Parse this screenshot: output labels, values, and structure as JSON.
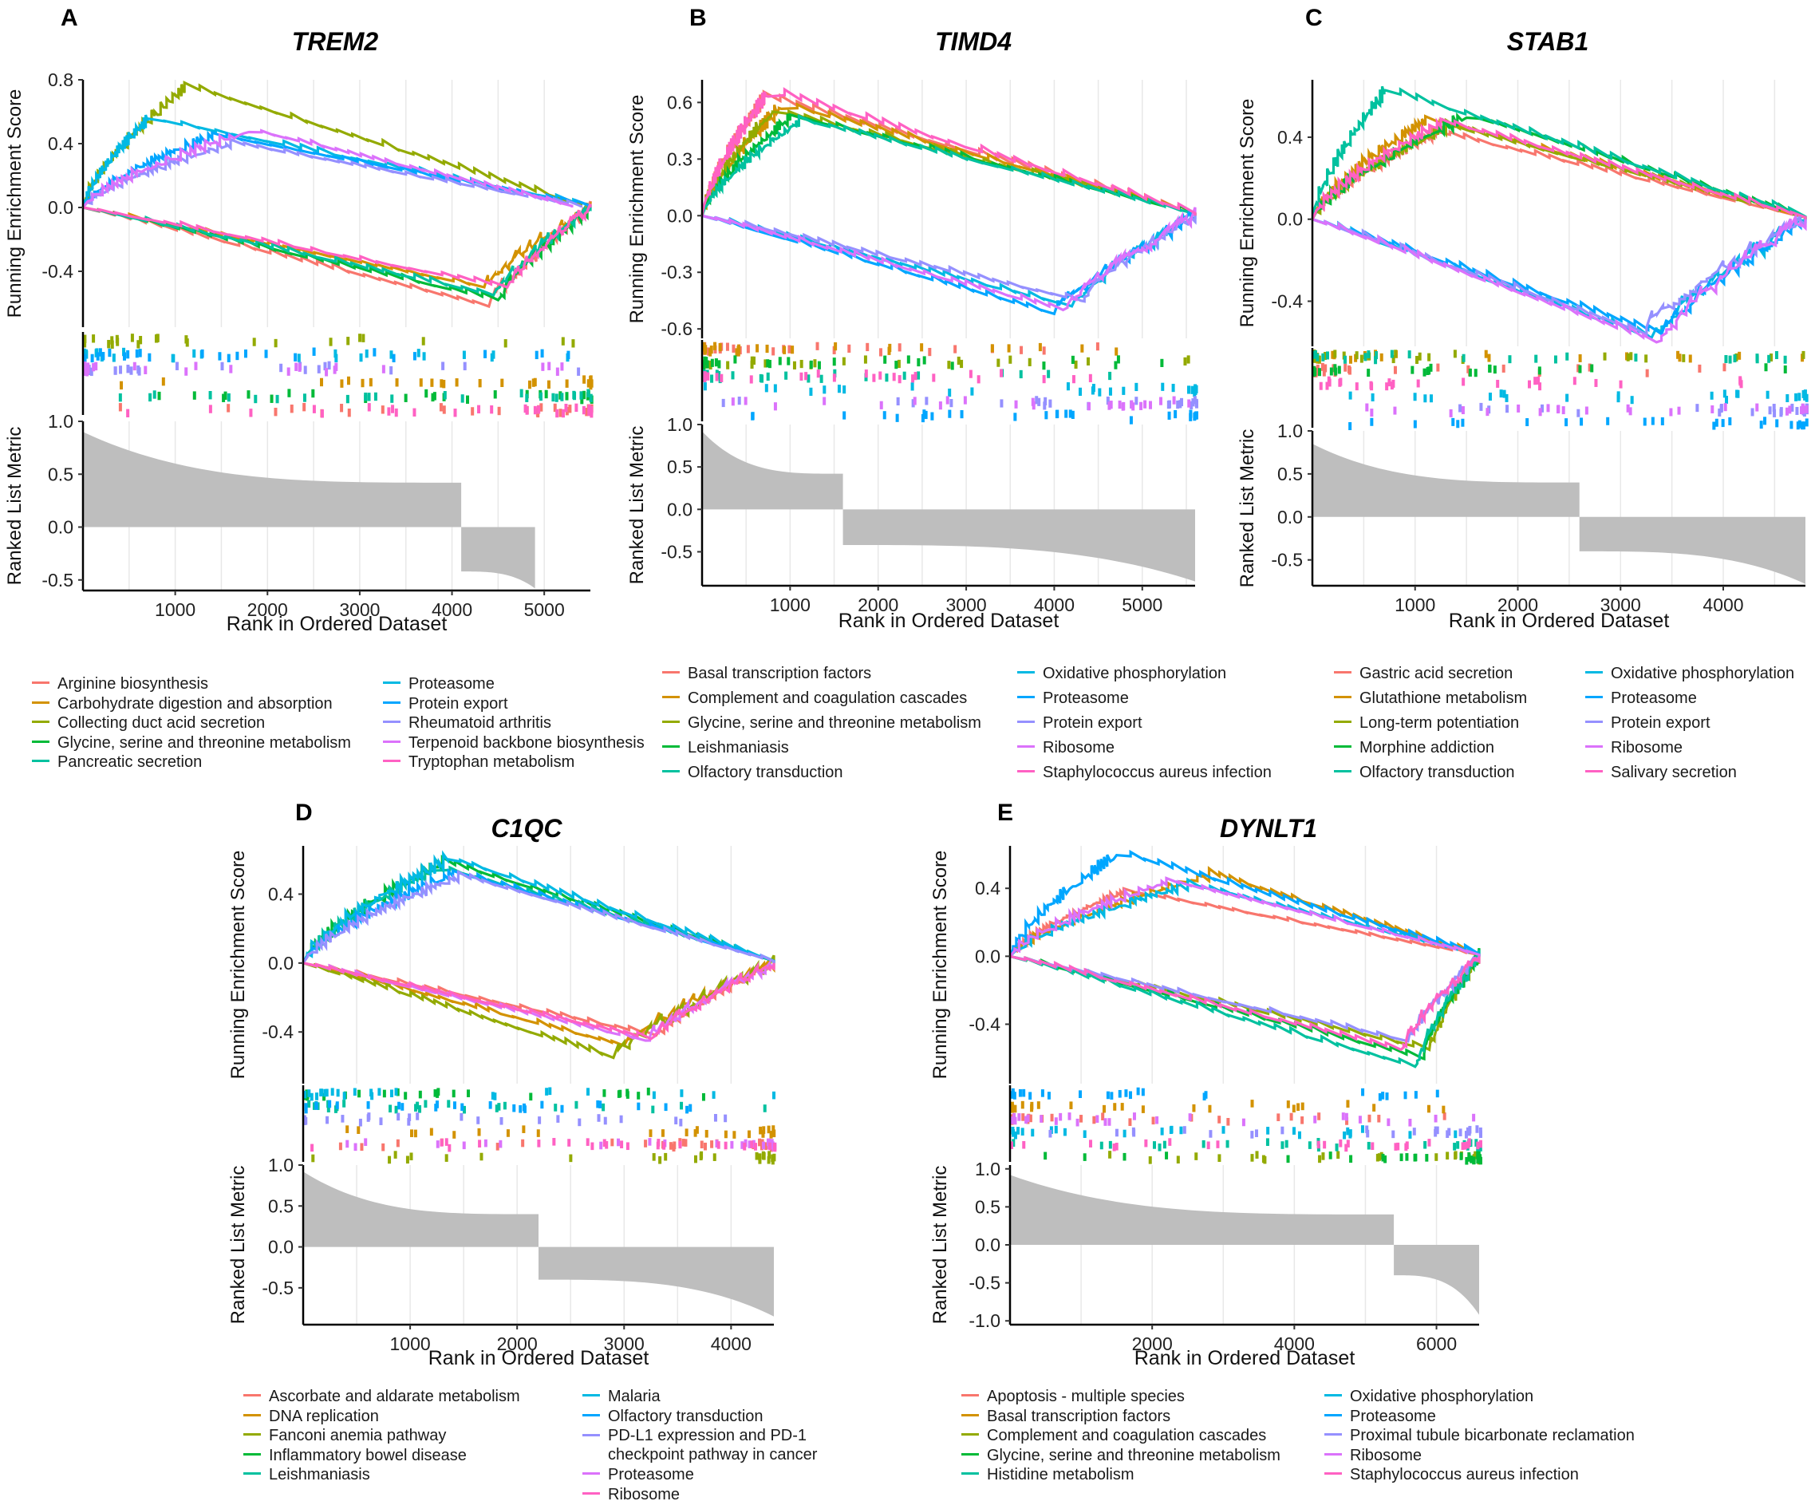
{
  "chart_data": [
    {
      "panel": "A",
      "gene": "TREM2",
      "type": "line",
      "xlabel": "Rank in Ordered Dataset",
      "ylabel_es": "Running Enrichment Score",
      "ylabel_metric": "Ranked List Metric",
      "xlim": [
        0,
        5500
      ],
      "xticks": [
        1000,
        2000,
        3000,
        4000,
        5000
      ],
      "es_ylim": [
        -0.75,
        0.8
      ],
      "es_yticks": [
        0.8,
        0.4,
        0.0,
        -0.4
      ],
      "es_ytick_labels": [
        "0.8",
        "0.4",
        "0.0",
        "-0.4"
      ],
      "metric_ylim": [
        -0.6,
        1.0
      ],
      "metric_yticks": [
        1.0,
        0.5,
        0.0,
        -0.5
      ],
      "metric_ytick_labels": [
        "1.0",
        "0.5",
        "0.0",
        "-0.5"
      ],
      "metric_curve": {
        "start": 0.9,
        "pos_end": 0.42,
        "cross": 4100,
        "neg_start": -0.42,
        "end": -0.58,
        "n": 4900
      },
      "series": [
        {
          "name": "Arginine biosynthesis",
          "color": "#F8766D",
          "direction": "neg",
          "peak": -0.62,
          "peak_rank": 4400,
          "n": 5500,
          "lane": 5
        },
        {
          "name": "Carbohydrate digestion and absorption",
          "color": "#D39200",
          "direction": "neg",
          "peak": -0.5,
          "peak_rank": 4350,
          "n": 5500,
          "lane": 3
        },
        {
          "name": "Collecting duct acid secretion",
          "color": "#93AA00",
          "direction": "pos",
          "peak": 0.75,
          "peak_rank": 1100,
          "n": 5400,
          "lane": 0
        },
        {
          "name": "Glycine, serine and threonine metabolism",
          "color": "#00BA38",
          "direction": "neg",
          "peak": -0.58,
          "peak_rank": 4500,
          "n": 5500,
          "lane": 4
        },
        {
          "name": "Pancreatic secretion",
          "color": "#00C19F",
          "direction": "neg",
          "peak": -0.55,
          "peak_rank": 4450,
          "n": 5500,
          "lane": 4
        },
        {
          "name": "Proteasome",
          "color": "#00B9E3",
          "direction": "pos",
          "peak": 0.55,
          "peak_rank": 700,
          "n": 5500,
          "lane": 1
        },
        {
          "name": "Protein export",
          "color": "#00A6FF",
          "direction": "pos",
          "peak": 0.45,
          "peak_rank": 1400,
          "n": 5500,
          "lane": 1
        },
        {
          "name": "Rheumatoid arthritis",
          "color": "#9590FF",
          "direction": "pos",
          "peak": 0.4,
          "peak_rank": 1600,
          "n": 5400,
          "lane": 2
        },
        {
          "name": "Terpenoid backbone biosynthesis",
          "color": "#DB72FB",
          "direction": "pos",
          "peak": 0.48,
          "peak_rank": 1800,
          "n": 5300,
          "lane": 2
        },
        {
          "name": "Tryptophan metabolism",
          "color": "#FF61C3",
          "direction": "neg",
          "peak": -0.5,
          "peak_rank": 4600,
          "n": 5500,
          "lane": 5
        }
      ]
    },
    {
      "panel": "B",
      "gene": "TIMD4",
      "type": "line",
      "xlabel": "Rank in Ordered Dataset",
      "ylabel_es": "Running Enrichment Score",
      "ylabel_metric": "Ranked List Metric",
      "xlim": [
        0,
        5600
      ],
      "xticks": [
        1000,
        2000,
        3000,
        4000,
        5000
      ],
      "es_ylim": [
        -0.65,
        0.72
      ],
      "es_yticks": [
        0.6,
        0.3,
        0.0,
        -0.3,
        -0.6
      ],
      "es_ytick_labels": [
        "0.6",
        "0.3",
        "0.0",
        "-0.3",
        "-0.6"
      ],
      "metric_ylim": [
        -0.9,
        1.0
      ],
      "metric_yticks": [
        1.0,
        0.5,
        0.0,
        -0.5
      ],
      "metric_ytick_labels": [
        "1.0",
        "0.5",
        "0.0",
        "-0.5"
      ],
      "metric_curve": {
        "start": 0.92,
        "pos_end": 0.42,
        "cross": 1600,
        "neg_start": -0.42,
        "end": -0.85,
        "n": 5600
      },
      "series": [
        {
          "name": "Basal transcription factors",
          "color": "#F8766D",
          "direction": "pos",
          "peak": 0.62,
          "peak_rank": 700,
          "n": 5600,
          "lane": 0
        },
        {
          "name": "Complement and coagulation cascades",
          "color": "#D39200",
          "direction": "pos",
          "peak": 0.58,
          "peak_rank": 900,
          "n": 5600,
          "lane": 0
        },
        {
          "name": "Glycine, serine and threonine metabolism",
          "color": "#93AA00",
          "direction": "pos",
          "peak": 0.55,
          "peak_rank": 800,
          "n": 5600,
          "lane": 1
        },
        {
          "name": "Leishmaniasis",
          "color": "#00BA38",
          "direction": "pos",
          "peak": 0.52,
          "peak_rank": 1000,
          "n": 5600,
          "lane": 1
        },
        {
          "name": "Olfactory transduction",
          "color": "#00C19F",
          "direction": "pos",
          "peak": 0.5,
          "peak_rank": 1100,
          "n": 5600,
          "lane": 2
        },
        {
          "name": "Oxidative phosphorylation",
          "color": "#00B9E3",
          "direction": "neg",
          "peak": -0.48,
          "peak_rank": 4200,
          "n": 5600,
          "lane": 3
        },
        {
          "name": "Proteasome",
          "color": "#00A6FF",
          "direction": "neg",
          "peak": -0.52,
          "peak_rank": 4000,
          "n": 5600,
          "lane": 5
        },
        {
          "name": "Protein export",
          "color": "#9590FF",
          "direction": "neg",
          "peak": -0.45,
          "peak_rank": 4300,
          "n": 5600,
          "lane": 4
        },
        {
          "name": "Ribosome",
          "color": "#DB72FB",
          "direction": "neg",
          "peak": -0.5,
          "peak_rank": 4100,
          "n": 5600,
          "lane": 4
        },
        {
          "name": "Staphylococcus aureus infection",
          "color": "#FF61C3",
          "direction": "pos",
          "peak": 0.65,
          "peak_rank": 750,
          "n": 5600,
          "lane": 2
        }
      ]
    },
    {
      "panel": "C",
      "gene": "STAB1",
      "type": "line",
      "xlabel": "Rank in Ordered Dataset",
      "ylabel_es": "Running Enrichment Score",
      "ylabel_metric": "Ranked List Metric",
      "xlim": [
        0,
        4800
      ],
      "xticks": [
        1000,
        2000,
        3000,
        4000
      ],
      "es_ylim": [
        -0.62,
        0.68
      ],
      "es_yticks": [
        0.4,
        0.0,
        -0.4
      ],
      "es_ytick_labels": [
        "0.4",
        "0.0",
        "-0.4"
      ],
      "metric_ylim": [
        -0.8,
        1.0
      ],
      "metric_yticks": [
        1.0,
        0.5,
        0.0,
        -0.5
      ],
      "metric_ytick_labels": [
        "1.0",
        "0.5",
        "0.0",
        "-0.5"
      ],
      "metric_curve": {
        "start": 0.85,
        "pos_end": 0.4,
        "cross": 2600,
        "neg_start": -0.4,
        "end": -0.78,
        "n": 4800
      },
      "series": [
        {
          "name": "Gastric acid secretion",
          "color": "#F8766D",
          "direction": "pos",
          "peak": 0.42,
          "peak_rank": 1200,
          "n": 4800,
          "lane": 1
        },
        {
          "name": "Glutathione metabolism",
          "color": "#D39200",
          "direction": "pos",
          "peak": 0.48,
          "peak_rank": 1100,
          "n": 4800,
          "lane": 0
        },
        {
          "name": "Long-term potentiation",
          "color": "#93AA00",
          "direction": "pos",
          "peak": 0.45,
          "peak_rank": 1300,
          "n": 4800,
          "lane": 0
        },
        {
          "name": "Morphine addiction",
          "color": "#00BA38",
          "direction": "pos",
          "peak": 0.5,
          "peak_rank": 1500,
          "n": 4800,
          "lane": 1
        },
        {
          "name": "Olfactory transduction",
          "color": "#00C19F",
          "direction": "pos",
          "peak": 0.62,
          "peak_rank": 700,
          "n": 4800,
          "lane": 0
        },
        {
          "name": "Oxidative phosphorylation",
          "color": "#00B9E3",
          "direction": "neg",
          "peak": -0.58,
          "peak_rank": 3300,
          "n": 4800,
          "lane": 3
        },
        {
          "name": "Proteasome",
          "color": "#00A6FF",
          "direction": "neg",
          "peak": -0.56,
          "peak_rank": 3400,
          "n": 4800,
          "lane": 5
        },
        {
          "name": "Protein export",
          "color": "#9590FF",
          "direction": "neg",
          "peak": -0.55,
          "peak_rank": 3200,
          "n": 4800,
          "lane": 4
        },
        {
          "name": "Ribosome",
          "color": "#DB72FB",
          "direction": "neg",
          "peak": -0.6,
          "peak_rank": 3350,
          "n": 4800,
          "lane": 4
        },
        {
          "name": "Salivary secretion",
          "color": "#FF61C3",
          "direction": "pos",
          "peak": 0.47,
          "peak_rank": 1250,
          "n": 4800,
          "lane": 2
        }
      ]
    },
    {
      "panel": "D",
      "gene": "C1QC",
      "type": "line",
      "xlabel": "Rank in Ordered Dataset",
      "ylabel_es": "Running Enrichment Score",
      "ylabel_metric": "Ranked List Metric",
      "xlim": [
        0,
        4400
      ],
      "xticks": [
        1000,
        2000,
        3000,
        4000
      ],
      "es_ylim": [
        -0.7,
        0.68
      ],
      "es_yticks": [
        0.4,
        0.0,
        -0.4
      ],
      "es_ytick_labels": [
        "0.4",
        "0.0",
        "-0.4"
      ],
      "metric_ylim": [
        -0.95,
        1.0
      ],
      "metric_yticks": [
        1.0,
        0.5,
        0.0,
        -0.5
      ],
      "metric_ytick_labels": [
        "1.0",
        "0.5",
        "0.0",
        "-0.5"
      ],
      "metric_curve": {
        "start": 0.92,
        "pos_end": 0.4,
        "cross": 2200,
        "neg_start": -0.4,
        "end": -0.85,
        "n": 4400
      },
      "series": [
        {
          "name": "Ascorbate and aldarate metabolism",
          "color": "#F8766D",
          "direction": "neg",
          "peak": -0.42,
          "peak_rank": 3300,
          "n": 4400,
          "lane": 4
        },
        {
          "name": "DNA replication",
          "color": "#D39200",
          "direction": "neg",
          "peak": -0.48,
          "peak_rank": 3000,
          "n": 4400,
          "lane": 3
        },
        {
          "name": "Fanconi anemia pathway",
          "color": "#93AA00",
          "direction": "neg",
          "peak": -0.55,
          "peak_rank": 2900,
          "n": 4400,
          "lane": 5
        },
        {
          "name": "Inflammatory bowel disease",
          "color": "#00BA38",
          "direction": "pos",
          "peak": 0.58,
          "peak_rank": 1300,
          "n": 4400,
          "lane": 0
        },
        {
          "name": "Leishmaniasis",
          "color": "#00C19F",
          "direction": "pos",
          "peak": 0.55,
          "peak_rank": 1250,
          "n": 4400,
          "lane": 1
        },
        {
          "name": "Malaria",
          "color": "#00B9E3",
          "direction": "pos",
          "peak": 0.6,
          "peak_rank": 1350,
          "n": 4400,
          "lane": 0
        },
        {
          "name": "Olfactory transduction",
          "color": "#00A6FF",
          "direction": "pos",
          "peak": 0.52,
          "peak_rank": 1400,
          "n": 4400,
          "lane": 1
        },
        {
          "name": "PD-L1 expression and PD-1 checkpoint pathway in cancer",
          "color": "#9590FF",
          "direction": "pos",
          "peak": 0.5,
          "peak_rank": 1450,
          "n": 4400,
          "lane": 2
        },
        {
          "name": "Proteasome",
          "color": "#DB72FB",
          "direction": "neg",
          "peak": -0.45,
          "peak_rank": 3200,
          "n": 4400,
          "lane": 4
        },
        {
          "name": "Ribosome",
          "color": "#FF61C3",
          "direction": "neg",
          "peak": -0.44,
          "peak_rank": 3250,
          "n": 4400,
          "lane": 4
        }
      ]
    },
    {
      "panel": "E",
      "gene": "DYNLT1",
      "type": "line",
      "xlabel": "Rank in Ordered Dataset",
      "ylabel_es": "Running Enrichment Score",
      "ylabel_metric": "Ranked List Metric",
      "xlim": [
        0,
        6600
      ],
      "xticks": [
        2000,
        4000,
        6000
      ],
      "es_ylim": [
        -0.75,
        0.65
      ],
      "es_yticks": [
        0.4,
        0.0,
        -0.4
      ],
      "es_ytick_labels": [
        "0.4",
        "0.0",
        "-0.4"
      ],
      "metric_ylim": [
        -1.05,
        1.05
      ],
      "metric_yticks": [
        1.0,
        0.5,
        0.0,
        -0.5,
        -1.0
      ],
      "metric_ytick_labels": [
        "1.0",
        "0.5",
        "0.0",
        "-0.5",
        "-1.0"
      ],
      "metric_curve": {
        "start": 0.92,
        "pos_end": 0.4,
        "cross": 5400,
        "neg_start": -0.4,
        "end": -0.92,
        "n": 6600
      },
      "series": [
        {
          "name": "Apoptosis - multiple species",
          "color": "#F8766D",
          "direction": "pos",
          "peak": 0.38,
          "peak_rank": 1600,
          "n": 6600,
          "lane": 2
        },
        {
          "name": "Basal transcription factors",
          "color": "#D39200",
          "direction": "pos",
          "peak": 0.48,
          "peak_rank": 2800,
          "n": 6600,
          "lane": 1
        },
        {
          "name": "Complement and coagulation cascades",
          "color": "#93AA00",
          "direction": "neg",
          "peak": -0.55,
          "peak_rank": 5900,
          "n": 6600,
          "lane": 5
        },
        {
          "name": "Glycine, serine and threonine metabolism",
          "color": "#00BA38",
          "direction": "neg",
          "peak": -0.6,
          "peak_rank": 5800,
          "n": 6600,
          "lane": 5
        },
        {
          "name": "Histidine metabolism",
          "color": "#00C19F",
          "direction": "neg",
          "peak": -0.65,
          "peak_rank": 5700,
          "n": 6600,
          "lane": 4
        },
        {
          "name": "Oxidative phosphorylation",
          "color": "#00B9E3",
          "direction": "pos",
          "peak": 0.42,
          "peak_rank": 2500,
          "n": 6600,
          "lane": 3
        },
        {
          "name": "Proteasome",
          "color": "#00A6FF",
          "direction": "pos",
          "peak": 0.6,
          "peak_rank": 1500,
          "n": 6600,
          "lane": 0
        },
        {
          "name": "Proximal tubule bicarbonate reclamation",
          "color": "#9590FF",
          "direction": "neg",
          "peak": -0.5,
          "peak_rank": 5600,
          "n": 6600,
          "lane": 3
        },
        {
          "name": "Ribosome",
          "color": "#DB72FB",
          "direction": "pos",
          "peak": 0.44,
          "peak_rank": 2200,
          "n": 6600,
          "lane": 2
        },
        {
          "name": "Staphylococcus aureus infection",
          "color": "#FF61C3",
          "direction": "neg",
          "peak": -0.55,
          "peak_rank": 5500,
          "n": 6600,
          "lane": 4
        }
      ]
    }
  ]
}
